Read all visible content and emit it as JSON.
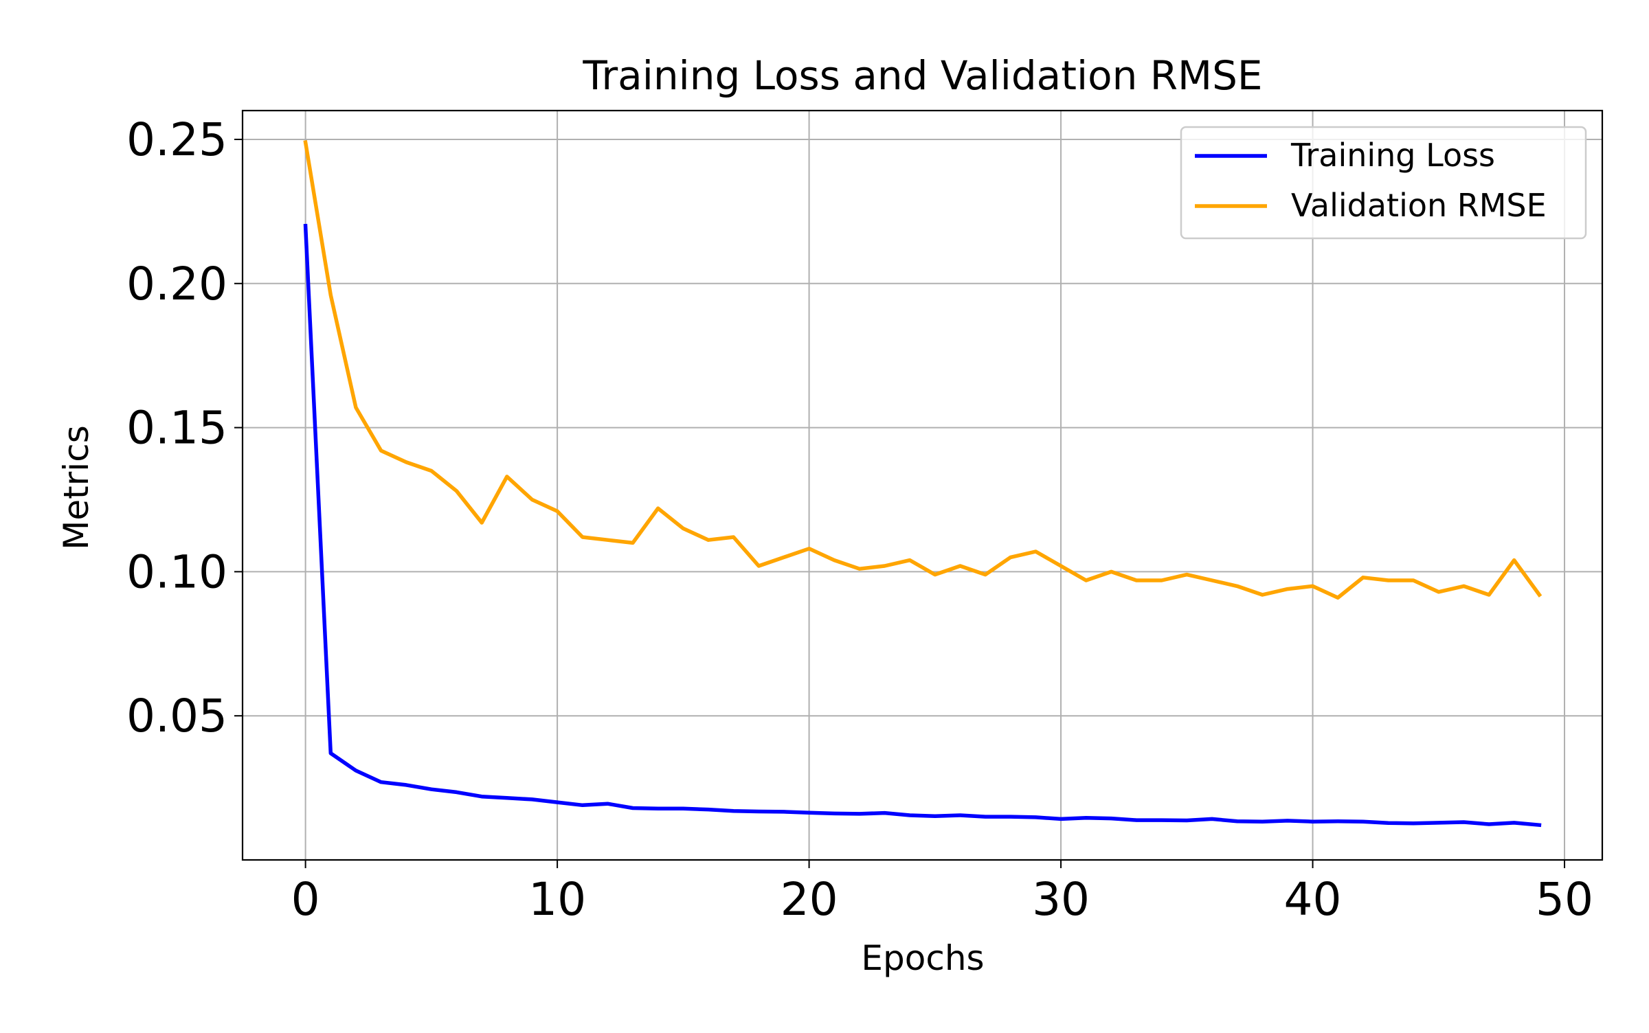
{
  "chart_data": {
    "type": "line",
    "title": "Training Loss and Validation RMSE",
    "xlabel": "Epochs",
    "ylabel": "Metrics",
    "xlim": [
      -2.5,
      51.5
    ],
    "ylim": [
      0.0,
      0.26
    ],
    "xticks": [
      0,
      10,
      20,
      30,
      40,
      50
    ],
    "yticks": [
      0.05,
      0.1,
      0.15,
      0.2,
      0.25
    ],
    "xtick_labels": [
      "0",
      "10",
      "20",
      "30",
      "40",
      "50"
    ],
    "ytick_labels": [
      "0.05",
      "0.10",
      "0.15",
      "0.20",
      "0.25"
    ],
    "grid": true,
    "legend_position": "top-right",
    "x": [
      0,
      1,
      2,
      3,
      4,
      5,
      6,
      7,
      8,
      9,
      10,
      11,
      12,
      13,
      14,
      15,
      16,
      17,
      18,
      19,
      20,
      21,
      22,
      23,
      24,
      25,
      26,
      27,
      28,
      29,
      30,
      31,
      32,
      33,
      34,
      35,
      36,
      37,
      38,
      39,
      40,
      41,
      42,
      43,
      44,
      45,
      46,
      47,
      48,
      49
    ],
    "series": [
      {
        "name": "Training Loss",
        "color": "#0000ff",
        "values": [
          0.22,
          0.037,
          0.031,
          0.027,
          0.026,
          0.0245,
          0.0235,
          0.022,
          0.0215,
          0.021,
          0.02,
          0.019,
          0.0195,
          0.018,
          0.0178,
          0.0178,
          0.0175,
          0.017,
          0.0168,
          0.0167,
          0.0164,
          0.0161,
          0.016,
          0.0163,
          0.0155,
          0.0152,
          0.0155,
          0.015,
          0.015,
          0.0148,
          0.0142,
          0.0146,
          0.0144,
          0.0138,
          0.0138,
          0.0137,
          0.0142,
          0.0134,
          0.0133,
          0.0136,
          0.0133,
          0.0134,
          0.0133,
          0.0128,
          0.0127,
          0.0129,
          0.0131,
          0.0124,
          0.0129,
          0.0121
        ]
      },
      {
        "name": "Validation RMSE",
        "color": "#ffa500",
        "values": [
          0.249,
          0.196,
          0.157,
          0.142,
          0.138,
          0.135,
          0.128,
          0.117,
          0.133,
          0.125,
          0.121,
          0.112,
          0.111,
          0.11,
          0.122,
          0.115,
          0.111,
          0.112,
          0.102,
          0.105,
          0.108,
          0.104,
          0.101,
          0.102,
          0.104,
          0.099,
          0.102,
          0.099,
          0.105,
          0.107,
          0.102,
          0.097,
          0.1,
          0.097,
          0.097,
          0.099,
          0.097,
          0.095,
          0.092,
          0.094,
          0.095,
          0.091,
          0.098,
          0.097,
          0.097,
          0.093,
          0.095,
          0.092,
          0.104,
          0.092
        ]
      }
    ]
  }
}
